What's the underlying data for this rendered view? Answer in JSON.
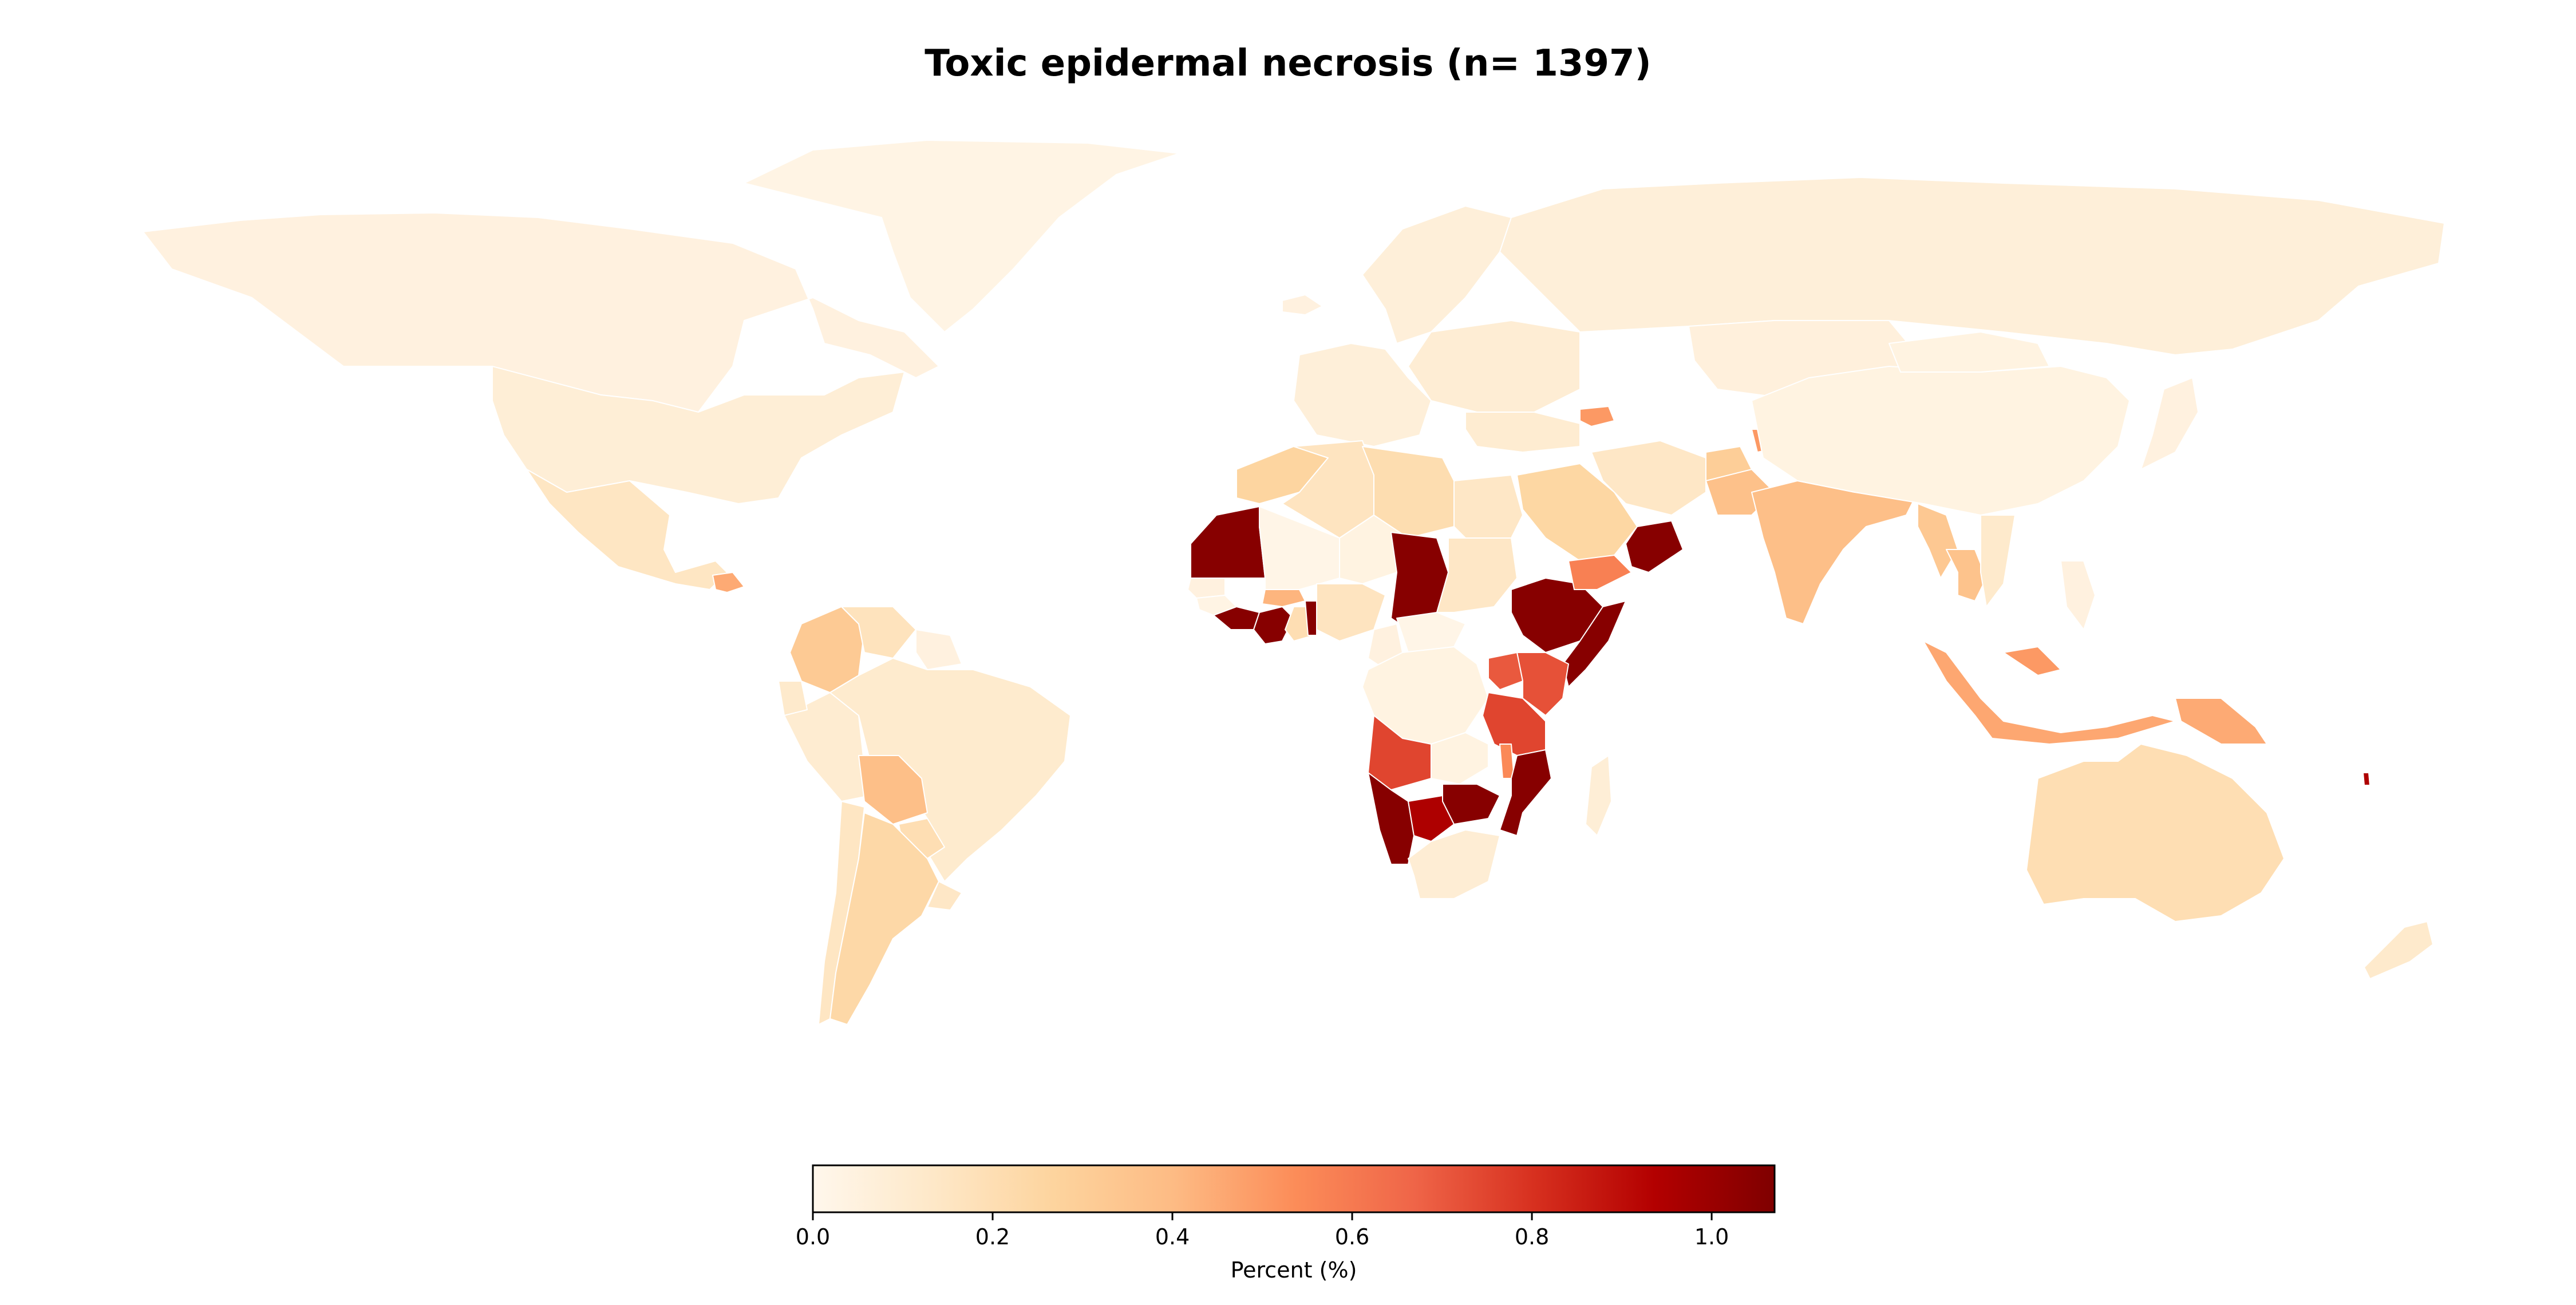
{
  "title": "Toxic epidermal necrosis (n= 1397)",
  "chart_data": {
    "type": "choropleth",
    "title": "Toxic epidermal necrosis (n= 1397)",
    "colormap": "OrRd",
    "colorbar": {
      "label": "Percent (%)",
      "range": [
        0.0,
        1.07
      ],
      "ticks": [
        0.0,
        0.2,
        0.4,
        0.6,
        0.8,
        1.0
      ],
      "tick_labels": [
        "0.0",
        "0.2",
        "0.4",
        "0.6",
        "0.8",
        "1.0"
      ],
      "stops": [
        "#fff7ec",
        "#fee8c8",
        "#fdd49e",
        "#fdbb84",
        "#fc8d59",
        "#ef6548",
        "#d7301f",
        "#b30000",
        "#7f0000"
      ]
    },
    "regions": [
      {
        "name": "Canada",
        "value": 0.05
      },
      {
        "name": "Greenland",
        "value": 0.03
      },
      {
        "name": "United States",
        "value": 0.08
      },
      {
        "name": "Mexico",
        "value": 0.15
      },
      {
        "name": "Guatemala",
        "value": 0.45
      },
      {
        "name": "Colombia",
        "value": 0.32
      },
      {
        "name": "Venezuela",
        "value": 0.17
      },
      {
        "name": "Guyana",
        "value": 0.05
      },
      {
        "name": "Peru",
        "value": 0.1
      },
      {
        "name": "Ecuador",
        "value": 0.12
      },
      {
        "name": "Brazil",
        "value": 0.11
      },
      {
        "name": "Bolivia",
        "value": 0.38
      },
      {
        "name": "Paraguay",
        "value": 0.2
      },
      {
        "name": "Chile",
        "value": 0.15
      },
      {
        "name": "Argentina",
        "value": 0.24
      },
      {
        "name": "Uruguay",
        "value": 0.14
      },
      {
        "name": "Iceland",
        "value": 0.05
      },
      {
        "name": "Scandinavia",
        "value": 0.07
      },
      {
        "name": "Western Europe",
        "value": 0.07
      },
      {
        "name": "Eastern Europe",
        "value": 0.09
      },
      {
        "name": "Russia",
        "value": 0.07
      },
      {
        "name": "Kazakhstan",
        "value": 0.06
      },
      {
        "name": "Georgia",
        "value": 0.5
      },
      {
        "name": "Turkey",
        "value": 0.1
      },
      {
        "name": "Morocco",
        "value": 0.26
      },
      {
        "name": "Algeria",
        "value": 0.16
      },
      {
        "name": "Libya",
        "value": 0.21
      },
      {
        "name": "Egypt",
        "value": 0.14
      },
      {
        "name": "Mauritania",
        "value": 1.05
      },
      {
        "name": "Mali",
        "value": 0.02
      },
      {
        "name": "Niger",
        "value": 0.04
      },
      {
        "name": "Chad",
        "value": 1.05
      },
      {
        "name": "Sudan",
        "value": 0.14
      },
      {
        "name": "Senegal",
        "value": 0.05
      },
      {
        "name": "Guinea",
        "value": 0.03
      },
      {
        "name": "Liberia",
        "value": 1.05
      },
      {
        "name": "Cote d'Ivoire",
        "value": 1.05
      },
      {
        "name": "Ghana",
        "value": 0.2
      },
      {
        "name": "Togo",
        "value": 1.05
      },
      {
        "name": "Burkina Faso",
        "value": 0.42
      },
      {
        "name": "Nigeria",
        "value": 0.16
      },
      {
        "name": "Cameroon",
        "value": 0.05
      },
      {
        "name": "Central African Republic",
        "value": 0.02
      },
      {
        "name": "DR Congo",
        "value": 0.04
      },
      {
        "name": "Ethiopia",
        "value": 1.05
      },
      {
        "name": "Somalia",
        "value": 1.05
      },
      {
        "name": "Kenya",
        "value": 0.72
      },
      {
        "name": "Uganda",
        "value": 0.7
      },
      {
        "name": "Tanzania",
        "value": 0.75
      },
      {
        "name": "Angola",
        "value": 0.75
      },
      {
        "name": "Zambia",
        "value": 0.04
      },
      {
        "name": "Malawi",
        "value": 0.55
      },
      {
        "name": "Mozambique",
        "value": 1.05
      },
      {
        "name": "Namibia",
        "value": 1.05
      },
      {
        "name": "Botswana",
        "value": 0.95
      },
      {
        "name": "Zimbabwe",
        "value": 1.05
      },
      {
        "name": "South Africa",
        "value": 0.09
      },
      {
        "name": "Madagascar",
        "value": 0.08
      },
      {
        "name": "Saudi Arabia",
        "value": 0.25
      },
      {
        "name": "Yemen",
        "value": 0.58
      },
      {
        "name": "Oman",
        "value": 1.05
      },
      {
        "name": "Iran",
        "value": 0.14
      },
      {
        "name": "Afghanistan",
        "value": 0.3
      },
      {
        "name": "Pakistan",
        "value": 0.37
      },
      {
        "name": "Nepal",
        "value": 0.5
      },
      {
        "name": "India",
        "value": 0.38
      },
      {
        "name": "China",
        "value": 0.04
      },
      {
        "name": "Mongolia",
        "value": 0.04
      },
      {
        "name": "Myanmar",
        "value": 0.33
      },
      {
        "name": "Thailand",
        "value": 0.36
      },
      {
        "name": "Vietnam",
        "value": 0.12
      },
      {
        "name": "Philippines",
        "value": 0.05
      },
      {
        "name": "Japan",
        "value": 0.05
      },
      {
        "name": "Indonesia",
        "value": 0.46
      },
      {
        "name": "Malaysia",
        "value": 0.5
      },
      {
        "name": "Papua New Guinea",
        "value": 0.45
      },
      {
        "name": "Australia",
        "value": 0.2
      },
      {
        "name": "New Zealand",
        "value": 0.12
      },
      {
        "name": "Pacific islands",
        "value": 0.95
      }
    ]
  }
}
